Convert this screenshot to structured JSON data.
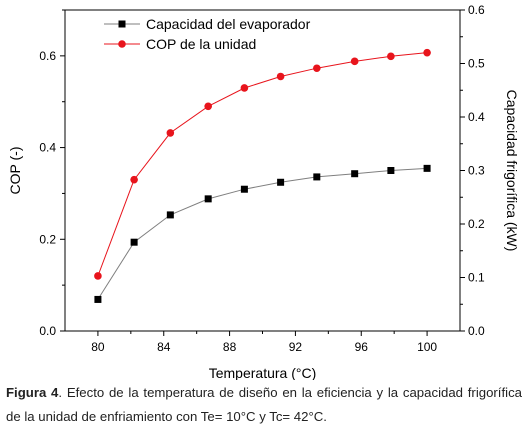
{
  "chart_data": {
    "type": "line",
    "xlabel": "Temperatura (°C)",
    "ylabel": "COP (-)",
    "y2label": "Capacidad frigorífica (kW)",
    "xlim": [
      78,
      102
    ],
    "ylim": [
      0,
      0.7
    ],
    "y2lim": [
      0,
      0.6
    ],
    "xticks": [
      "80",
      "84",
      "88",
      "92",
      "96",
      "100"
    ],
    "yticks": [
      "0.0",
      "0.2",
      "0.4",
      "0.6"
    ],
    "y2ticks": [
      "0.0",
      "0.1",
      "0.2",
      "0.3",
      "0.4",
      "0.5",
      "0.6"
    ],
    "legend_position": "top-left",
    "series": [
      {
        "name": "Capacidad del evaporador",
        "axis": "right",
        "marker": "square",
        "color": "#000000",
        "line_color": "#7f7f7f",
        "x": [
          80,
          82.2,
          84.4,
          86.7,
          88.9,
          91.1,
          93.3,
          95.6,
          97.8,
          100
        ],
        "y": [
          0.059,
          0.166,
          0.217,
          0.247,
          0.265,
          0.278,
          0.288,
          0.294,
          0.3,
          0.304
        ]
      },
      {
        "name": "COP de la unidad",
        "axis": "left",
        "marker": "circle",
        "color": "#e8141c",
        "line_color": "#e8141c",
        "x": [
          80,
          82.2,
          84.4,
          86.7,
          88.9,
          91.1,
          93.3,
          95.6,
          97.8,
          100
        ],
        "y": [
          0.12,
          0.33,
          0.432,
          0.49,
          0.53,
          0.555,
          0.573,
          0.588,
          0.599,
          0.607
        ]
      }
    ]
  },
  "caption": {
    "label": "Figura 4",
    "text": ". Efecto de la temperatura de diseño en la eficiencia y la capacidad frigorífica de la unidad de enfriamiento con Te= 10°C y Tc= 42°C."
  }
}
